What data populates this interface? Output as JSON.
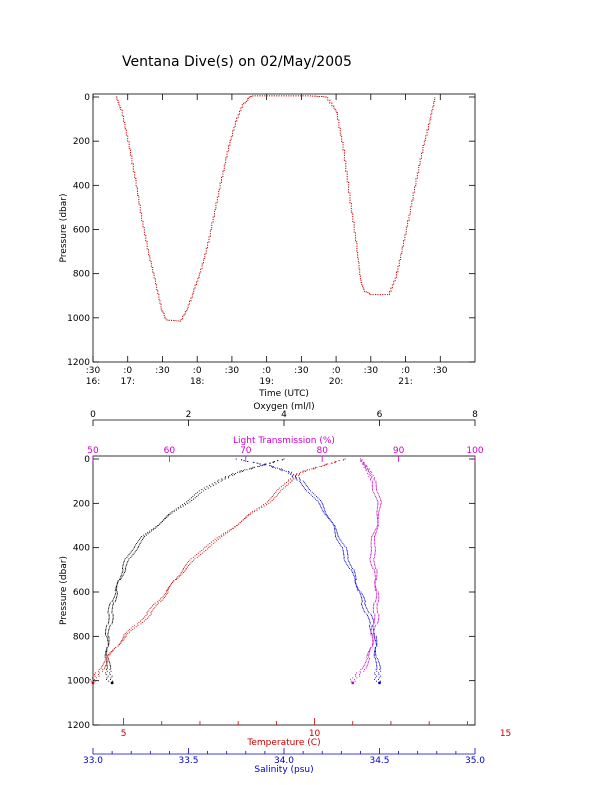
{
  "title": "Ventana Dive(s) on 02/May/2005",
  "chart_data": [
    {
      "type": "line",
      "title": "Ventana Dive(s) on 02/May/2005",
      "xlabel": "Time (UTC)",
      "ylabel": "Pressure (dbar)",
      "xlim": [
        16.5,
        22.0
      ],
      "ylim": [
        1200,
        0
      ],
      "y_ticks": [
        "0",
        "200",
        "400",
        "600",
        "800",
        "1000",
        "1200"
      ],
      "x_ticks": [
        {
          "top": ":30",
          "bottom": "16:",
          "x": 16.5
        },
        {
          "top": ":0",
          "bottom": "17:",
          "x": 17.0
        },
        {
          "top": ":30",
          "bottom": "",
          "x": 17.5
        },
        {
          "top": ":0",
          "bottom": "18:",
          "x": 18.0
        },
        {
          "top": ":30",
          "bottom": "",
          "x": 18.5
        },
        {
          "top": ":0",
          "bottom": "19:",
          "x": 19.0
        },
        {
          "top": ":30",
          "bottom": "",
          "x": 19.5
        },
        {
          "top": ":0",
          "bottom": "20:",
          "x": 20.0
        },
        {
          "top": ":30",
          "bottom": "",
          "x": 20.5
        },
        {
          "top": ":0",
          "bottom": "21:",
          "x": 21.0
        },
        {
          "top": ":30",
          "bottom": "",
          "x": 21.5
        }
      ],
      "color": "#cc0000",
      "series": [
        {
          "x": [
            16.83,
            16.9,
            17.0,
            17.1,
            17.2,
            17.3,
            17.4,
            17.48,
            17.55,
            17.75,
            17.85,
            17.95,
            18.05,
            18.15,
            18.25,
            18.35,
            18.45,
            18.55,
            18.65,
            18.75,
            18.8,
            19.0,
            19.2,
            19.4,
            19.6,
            19.85,
            20.0,
            20.1,
            20.2,
            20.3,
            20.35,
            20.4,
            20.5,
            20.75,
            20.85,
            20.95,
            21.05,
            21.15,
            21.25,
            21.35,
            21.42
          ],
          "y": [
            0,
            60,
            200,
            370,
            560,
            720,
            850,
            960,
            1010,
            1015,
            960,
            870,
            780,
            660,
            510,
            360,
            220,
            110,
            35,
            0,
            -5,
            -5,
            -5,
            -5,
            -5,
            0,
            70,
            240,
            480,
            700,
            830,
            880,
            895,
            895,
            820,
            680,
            530,
            370,
            220,
            100,
            0
          ]
        }
      ]
    },
    {
      "type": "scatter",
      "ylabel": "Pressure (dbar)",
      "ylim": [
        1200,
        0
      ],
      "y_ticks": [
        "0",
        "200",
        "400",
        "600",
        "800",
        "1000",
        "1200"
      ],
      "axes": {
        "oxygen": {
          "label": "Oxygen (ml/l)",
          "range": [
            0,
            8
          ],
          "ticks": [
            "0",
            "2",
            "4",
            "6",
            "8"
          ],
          "color": "#000000"
        },
        "light_transmission": {
          "label": "Light Transmission (%)",
          "range": [
            50,
            100
          ],
          "ticks": [
            "50",
            "60",
            "70",
            "80",
            "90",
            "100"
          ],
          "color": "#cc00cc"
        },
        "temperature": {
          "label": "Temperature (C)",
          "range": [
            4.2,
            14.2
          ],
          "ticks": [
            "5",
            "10",
            "15"
          ],
          "color": "#cc0000"
        },
        "salinity": {
          "label": "Salinity (psu)",
          "range": [
            33.0,
            35.0
          ],
          "ticks": [
            "33.0",
            "33.5",
            "34.0",
            "34.5",
            "35.0"
          ],
          "color": "#0000cc"
        }
      },
      "series": [
        {
          "name": "Oxygen (ml/l)",
          "color": "#000000",
          "axis": "oxygen",
          "pressure": [
            0,
            30,
            60,
            100,
            150,
            200,
            250,
            300,
            350,
            400,
            450,
            500,
            550,
            600,
            650,
            700,
            750,
            800,
            850,
            900,
            950,
            1010
          ],
          "values": [
            4.0,
            3.5,
            3.0,
            2.6,
            2.2,
            1.9,
            1.6,
            1.35,
            1.1,
            0.92,
            0.78,
            0.66,
            0.56,
            0.46,
            0.38,
            0.32,
            0.3,
            0.28,
            0.3,
            0.32,
            0.35,
            0.4
          ]
        },
        {
          "name": "Temperature (C)",
          "color": "#cc0000",
          "axis": "temperature",
          "pressure": [
            0,
            30,
            60,
            100,
            150,
            200,
            250,
            300,
            350,
            400,
            450,
            500,
            550,
            600,
            650,
            700,
            750,
            800,
            850,
            900,
            950,
            1010
          ],
          "values": [
            10.8,
            10.2,
            9.6,
            9.3,
            9.0,
            8.7,
            8.3,
            7.95,
            7.6,
            7.2,
            6.9,
            6.6,
            6.35,
            6.1,
            5.85,
            5.6,
            5.3,
            5.0,
            4.8,
            4.6,
            4.45,
            4.2
          ]
        },
        {
          "name": "Salinity (psu)",
          "color": "#0000cc",
          "axis": "salinity",
          "pressure": [
            0,
            30,
            60,
            100,
            150,
            200,
            250,
            300,
            350,
            400,
            450,
            500,
            550,
            600,
            650,
            700,
            750,
            800,
            850,
            900,
            950,
            1010
          ],
          "values": [
            33.75,
            33.92,
            34.02,
            34.08,
            34.13,
            34.18,
            34.22,
            34.26,
            34.29,
            34.32,
            34.34,
            34.36,
            34.38,
            34.39,
            34.41,
            34.43,
            34.45,
            34.47,
            34.48,
            34.49,
            34.5,
            34.5
          ]
        },
        {
          "name": "Light Transmission (%)",
          "color": "#cc00cc",
          "axis": "light_transmission",
          "pressure": [
            0,
            30,
            60,
            100,
            150,
            200,
            250,
            300,
            350,
            400,
            450,
            500,
            550,
            600,
            650,
            700,
            750,
            800,
            850,
            900,
            950,
            1010
          ],
          "values": [
            85.0,
            85.5,
            86.0,
            86.5,
            86.8,
            87.2,
            87.3,
            87.2,
            87.0,
            86.8,
            86.9,
            87.0,
            87.1,
            87.0,
            86.9,
            86.8,
            86.6,
            86.5,
            86.4,
            86.2,
            85.5,
            84.0
          ]
        }
      ]
    }
  ]
}
